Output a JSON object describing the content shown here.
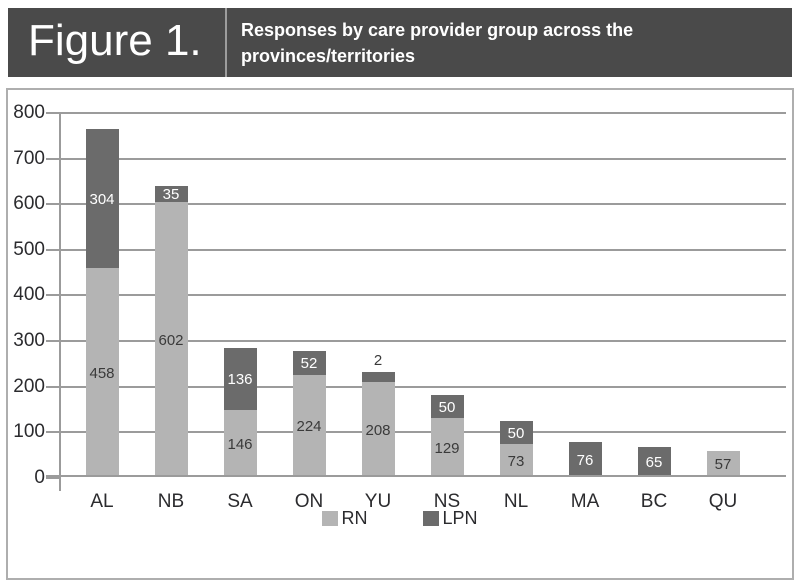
{
  "header": {
    "figure_label": "Figure 1.",
    "title_line1": "Responses by care provider group across the",
    "title_line2": "provinces/territories"
  },
  "chart_data": {
    "type": "bar",
    "stacked": true,
    "title": "Responses by care provider group across the provinces/territories",
    "categories": [
      "AL",
      "NB",
      "SA",
      "ON",
      "YU",
      "NS",
      "NL",
      "MA",
      "BC",
      "QU"
    ],
    "series": [
      {
        "name": "RN",
        "color": "#b4b4b4",
        "label_color": "#3a3a3a",
        "values": [
          458,
          602,
          146,
          224,
          208,
          129,
          73,
          0,
          0,
          57
        ]
      },
      {
        "name": "LPN",
        "color": "#6b6b6b",
        "label_color": "#ffffff",
        "values": [
          304,
          35,
          136,
          52,
          2,
          50,
          50,
          76,
          65,
          0
        ]
      }
    ],
    "xlabel": "",
    "ylabel": "",
    "ylim": [
      0,
      800
    ],
    "yticks": [
      0,
      100,
      200,
      300,
      400,
      500,
      600,
      700,
      800
    ],
    "grid": true,
    "legend_position": "bottom",
    "value_labels": true
  },
  "colors": {
    "header_bg": "#4a4a4a",
    "header_text": "#ffffff",
    "header_divider": "#9d9d9d",
    "panel_border": "#aeaeae",
    "gridline": "#9b9b9b",
    "axis_text": "#2b2b2e",
    "outside_label_text": "#3a3a3a"
  }
}
